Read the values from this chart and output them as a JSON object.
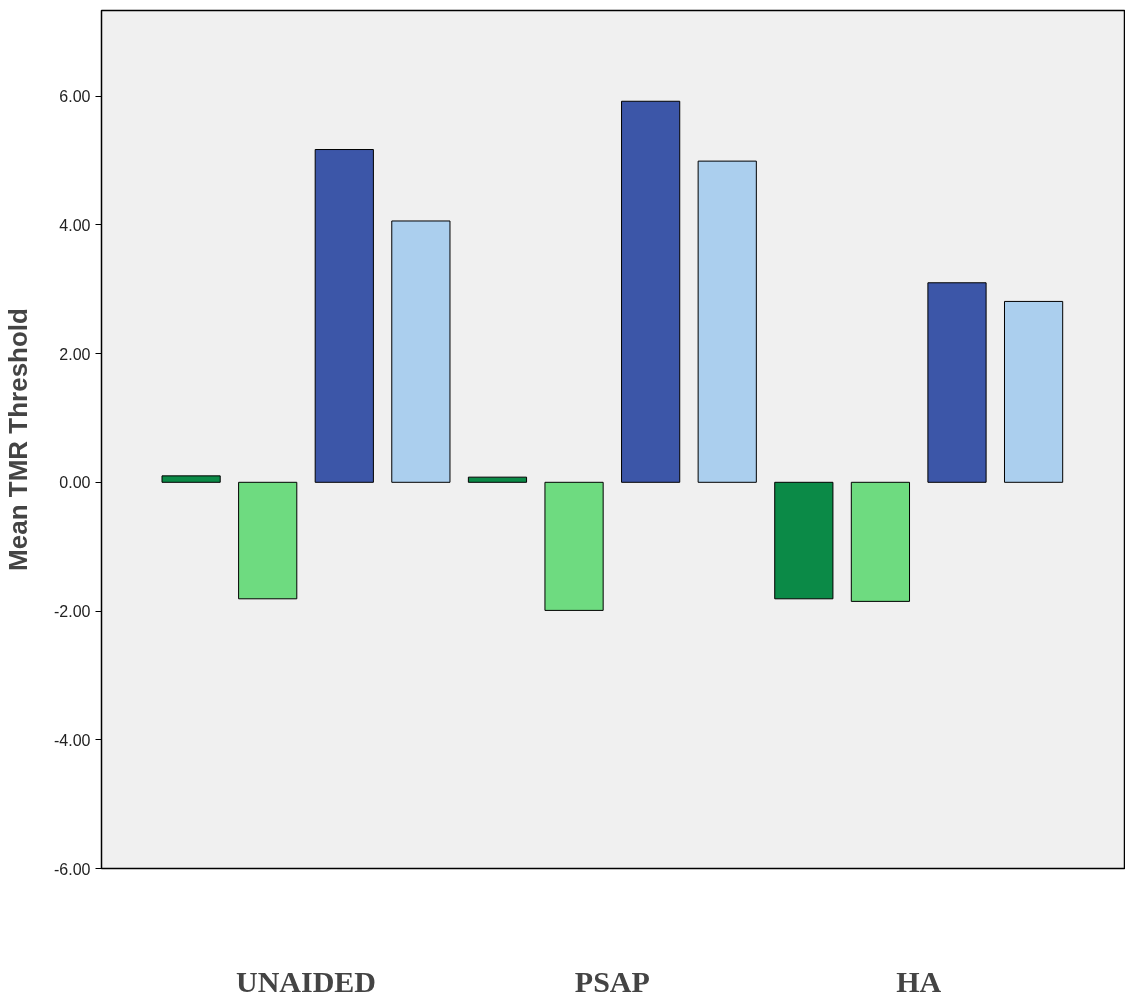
{
  "chart_data": {
    "type": "bar",
    "ylabel": "Mean TMR Threshold",
    "categories": [
      "UNAIDED",
      "PSAP",
      "HA"
    ],
    "series": [
      {
        "color": "#0b8a47",
        "values": [
          0.1,
          0.08,
          -1.81
        ]
      },
      {
        "color": "#6edb80",
        "values": [
          -1.81,
          -1.99,
          -1.85
        ]
      },
      {
        "color": "#3c56a8",
        "values": [
          5.17,
          5.92,
          3.1
        ]
      },
      {
        "color": "#abcfee",
        "values": [
          4.06,
          4.99,
          2.81
        ]
      }
    ],
    "ylim": [
      -6,
      7.33
    ],
    "yticks": [
      {
        "value": -6,
        "label": "-6.00"
      },
      {
        "value": -4,
        "label": "-4.00"
      },
      {
        "value": -2,
        "label": "-2.00"
      },
      {
        "value": 0,
        "label": "0.00"
      },
      {
        "value": 2,
        "label": "2.00"
      },
      {
        "value": 4,
        "label": "4.00"
      },
      {
        "value": 6,
        "label": "6.00"
      }
    ],
    "grid": false
  }
}
